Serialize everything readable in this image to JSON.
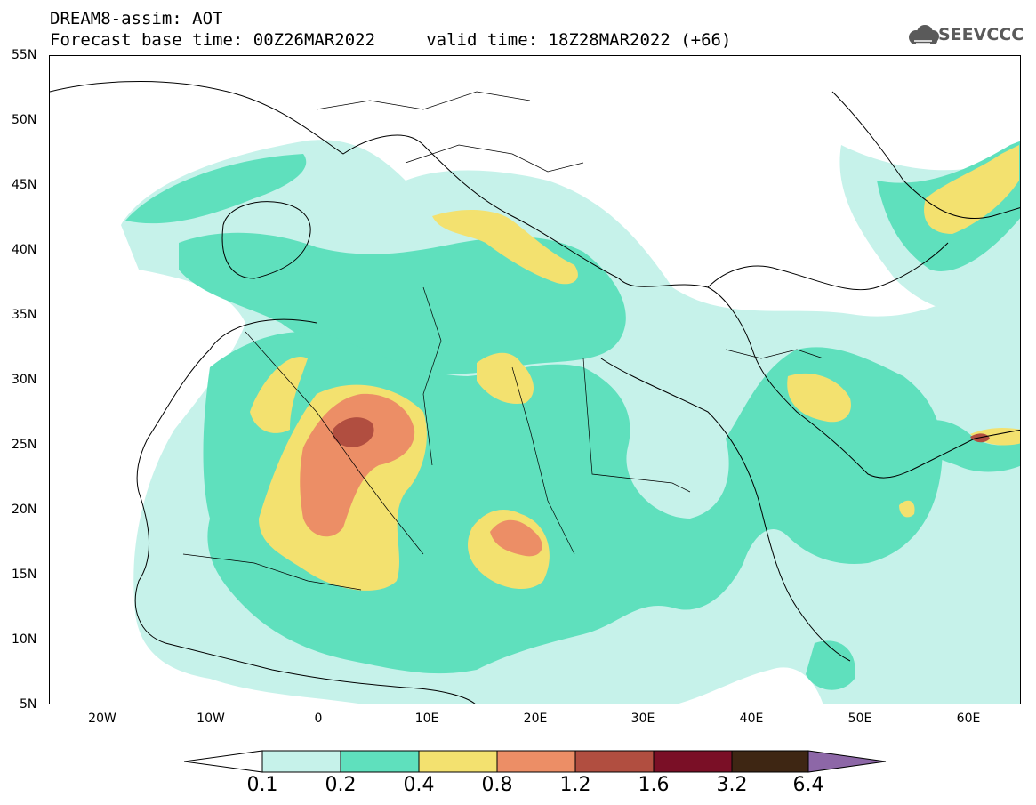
{
  "header": {
    "line1": "DREAM8-assim: AOT",
    "line2": "Forecast base time: 00Z26MAR2022     valid time: 18Z28MAR2022 (+66)"
  },
  "logo": {
    "text": "SEEVCCC",
    "icon": "cloud-logo-icon"
  },
  "map": {
    "lat_labels": [
      "55N",
      "50N",
      "45N",
      "40N",
      "35N",
      "30N",
      "25N",
      "20N",
      "15N",
      "10N",
      "5N"
    ],
    "lon_labels": [
      "20W",
      "10W",
      "0",
      "10E",
      "20E",
      "30E",
      "40E",
      "50E",
      "60E"
    ]
  },
  "colorbar": {
    "labels": [
      "0.1",
      "0.2",
      "0.4",
      "0.8",
      "1.2",
      "1.6",
      "3.2",
      "6.4"
    ],
    "colors": [
      "#c6f2ea",
      "#5fe0bd",
      "#f3e16f",
      "#ec8e66",
      "#b14e40",
      "#7a0f26",
      "#3e2613",
      "#8d67a7"
    ]
  }
}
